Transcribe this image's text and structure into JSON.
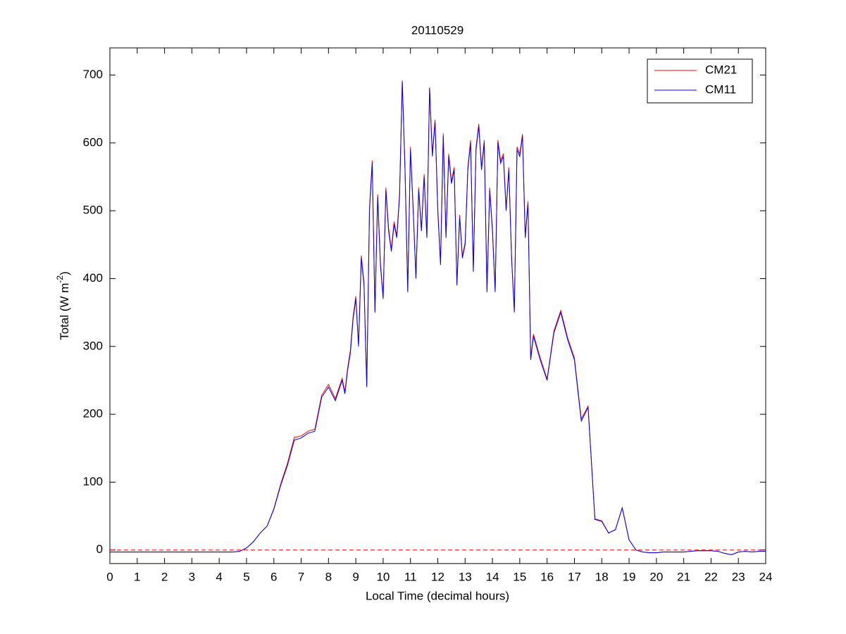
{
  "chart_data": {
    "type": "line",
    "title": "20110529",
    "xlabel": "Local Time (decimal hours)",
    "ylabel": [
      "Total (W m",
      "-2",
      ")"
    ],
    "xlim": [
      0,
      24
    ],
    "xticks": [
      0,
      1,
      2,
      3,
      4,
      5,
      6,
      7,
      8,
      9,
      10,
      11,
      12,
      13,
      14,
      15,
      16,
      17,
      18,
      19,
      20,
      21,
      22,
      23,
      24
    ],
    "ylim": [
      -20,
      740
    ],
    "yticks": [
      0,
      100,
      200,
      300,
      400,
      500,
      600,
      700
    ],
    "hline": 0,
    "hline_color": "#ff0000",
    "legend": "upper right",
    "x": [
      0,
      0.25,
      0.5,
      0.75,
      1,
      1.25,
      1.5,
      1.75,
      2,
      2.25,
      2.5,
      2.75,
      3,
      3.25,
      3.5,
      3.75,
      4,
      4.25,
      4.5,
      4.75,
      5,
      5.25,
      5.5,
      5.75,
      6,
      6.25,
      6.5,
      6.75,
      7,
      7.25,
      7.5,
      7.75,
      8,
      8.25,
      8.5,
      8.6,
      8.7,
      8.8,
      8.9,
      9.0,
      9.1,
      9.2,
      9.3,
      9.4,
      9.5,
      9.6,
      9.7,
      9.8,
      9.9,
      10.0,
      10.1,
      10.2,
      10.3,
      10.4,
      10.5,
      10.6,
      10.7,
      10.8,
      10.9,
      11.0,
      11.1,
      11.2,
      11.3,
      11.4,
      11.5,
      11.6,
      11.7,
      11.8,
      11.9,
      12.0,
      12.1,
      12.2,
      12.3,
      12.4,
      12.5,
      12.6,
      12.7,
      12.8,
      12.9,
      13.0,
      13.1,
      13.2,
      13.3,
      13.4,
      13.5,
      13.6,
      13.7,
      13.8,
      13.9,
      14.0,
      14.1,
      14.2,
      14.3,
      14.4,
      14.5,
      14.6,
      14.7,
      14.8,
      14.9,
      15.0,
      15.1,
      15.2,
      15.3,
      15.4,
      15.5,
      15.75,
      16,
      16.25,
      16.5,
      16.75,
      17,
      17.25,
      17.5,
      17.75,
      18,
      18.25,
      18.5,
      18.75,
      19,
      19.25,
      19.5,
      19.75,
      20,
      20.25,
      20.5,
      20.75,
      21,
      21.25,
      21.5,
      21.75,
      22,
      22.25,
      22.5,
      22.75,
      23,
      23.25,
      23.5,
      23.75,
      24
    ],
    "series": [
      {
        "name": "CM21",
        "color": "#ff0000",
        "values": [
          -3,
          -3,
          -3,
          -3,
          -3,
          -3,
          -3,
          -3,
          -3,
          -3,
          -3,
          -3,
          -3,
          -3,
          -3,
          -3,
          -3,
          -3,
          -3,
          -2,
          3,
          12,
          25,
          35,
          61,
          97,
          128,
          166,
          168,
          175,
          178,
          228,
          244,
          223,
          253,
          233,
          268,
          294,
          344,
          374,
          303,
          434,
          394,
          242,
          504,
          574,
          353,
          524,
          424,
          373,
          534,
          474,
          443,
          484,
          463,
          524,
          692,
          564,
          383,
          594,
          503,
          403,
          534,
          473,
          554,
          463,
          682,
          584,
          634,
          503,
          423,
          614,
          463,
          584,
          543,
          564,
          393,
          494,
          433,
          453,
          564,
          604,
          413,
          594,
          628,
          564,
          604,
          383,
          534,
          473,
          383,
          604,
          573,
          584,
          503,
          564,
          433,
          353,
          594,
          584,
          613,
          463,
          514,
          283,
          318,
          283,
          252,
          323,
          353,
          313,
          283,
          193,
          212,
          46,
          43,
          25,
          30,
          62,
          15,
          0,
          -3,
          -4,
          -4,
          -3,
          -3,
          -3,
          -3,
          -2,
          -1,
          -1,
          -1,
          -2,
          -5,
          -7,
          -3,
          -2,
          -3,
          -2,
          -2
        ]
      },
      {
        "name": "CM11",
        "color": "#0000ff",
        "values": [
          -3,
          -3,
          -3,
          -3,
          -3,
          -3,
          -3,
          -3,
          -3,
          -3,
          -3,
          -3,
          -3,
          -3,
          -3,
          -3,
          -3,
          -3,
          -3,
          -2,
          3,
          12,
          25,
          35,
          60,
          95,
          125,
          162,
          165,
          172,
          175,
          225,
          240,
          220,
          250,
          230,
          265,
          290,
          340,
          370,
          300,
          430,
          390,
          240,
          500,
          570,
          350,
          520,
          420,
          370,
          530,
          470,
          440,
          480,
          460,
          520,
          690,
          560,
          380,
          590,
          500,
          400,
          530,
          470,
          550,
          460,
          680,
          580,
          630,
          500,
          420,
          610,
          460,
          580,
          540,
          560,
          390,
          490,
          430,
          450,
          560,
          600,
          410,
          590,
          625,
          560,
          600,
          380,
          530,
          470,
          380,
          600,
          570,
          580,
          500,
          560,
          430,
          350,
          590,
          580,
          610,
          460,
          510,
          280,
          315,
          280,
          250,
          320,
          350,
          310,
          280,
          190,
          210,
          45,
          42,
          25,
          30,
          62,
          15,
          0,
          -3,
          -4,
          -4,
          -3,
          -3,
          -3,
          -3,
          -2,
          -1,
          -1,
          -1,
          -2,
          -5,
          -7,
          -3,
          -2,
          -3,
          -2,
          -2
        ]
      }
    ]
  }
}
